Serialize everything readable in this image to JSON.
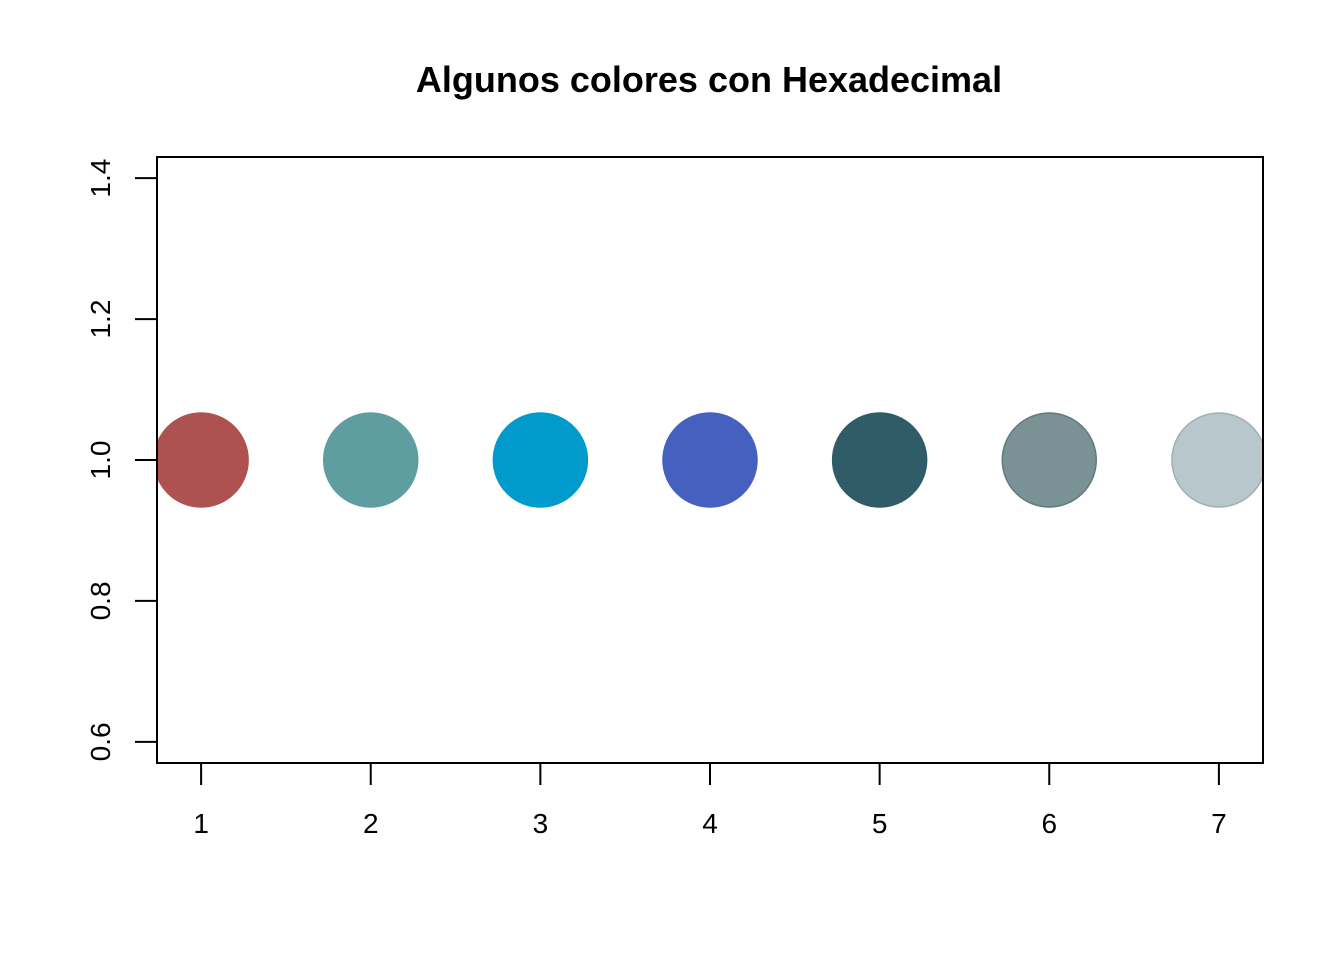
{
  "chart_data": {
    "type": "scatter",
    "title": "Algunos colores con Hexadecimal",
    "xlabel": "",
    "ylabel": "",
    "x": [
      1,
      2,
      3,
      4,
      5,
      6,
      7
    ],
    "y": [
      1,
      1,
      1,
      1,
      1,
      1,
      1
    ],
    "point_colors": [
      "#AD5250",
      "#5F9EA0",
      "#009ACD",
      "#4560BE",
      "#2F5C66",
      "#7A9296",
      "#B8C7CB"
    ],
    "point_outline_colors": [
      "#AD5250",
      "#5F9EA0",
      "#009ACD",
      "#4560BE",
      "#2F5C66",
      "#627A7E",
      "#9FB0B4"
    ],
    "xlim": [
      0.74,
      7.26
    ],
    "ylim": [
      0.57,
      1.43
    ],
    "x_ticks": [
      1,
      2,
      3,
      4,
      5,
      6,
      7
    ],
    "y_ticks": [
      0.6,
      0.8,
      1.0,
      1.2,
      1.4
    ],
    "x_tick_labels": [
      "1",
      "2",
      "3",
      "4",
      "5",
      "6",
      "7"
    ],
    "y_tick_labels": [
      "0.6",
      "0.8",
      "1.0",
      "1.2",
      "1.4"
    ],
    "grid": false,
    "legend": "none"
  }
}
